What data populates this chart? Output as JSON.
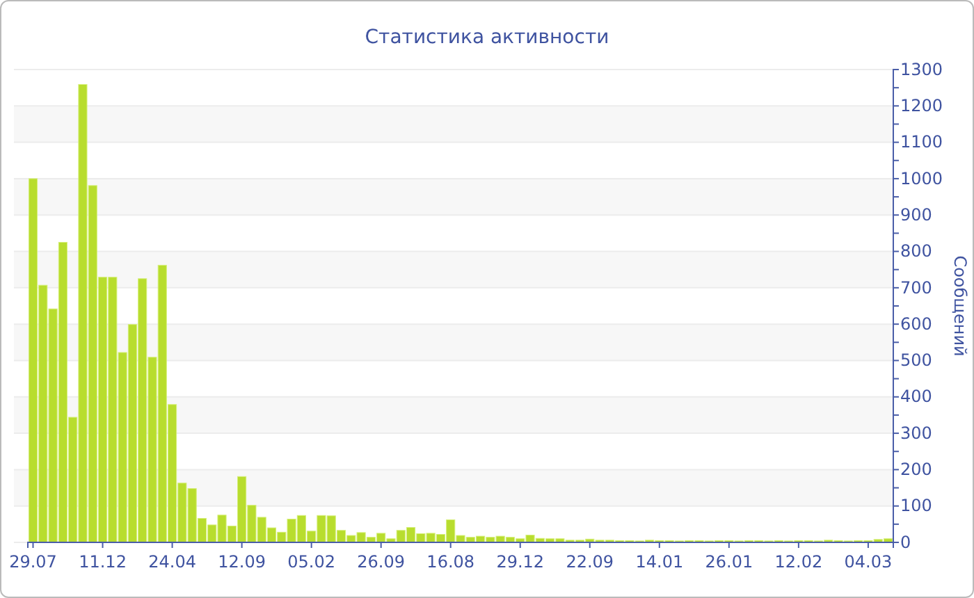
{
  "chart_data": {
    "type": "bar",
    "title": "Статистика активности",
    "ylabel": "Сообщений",
    "categories": [
      "29.07",
      null,
      null,
      null,
      null,
      null,
      null,
      "11.12",
      null,
      null,
      null,
      null,
      null,
      null,
      "24.04",
      null,
      null,
      null,
      null,
      null,
      null,
      "12.09",
      null,
      null,
      null,
      null,
      null,
      null,
      "05.02",
      null,
      null,
      null,
      null,
      null,
      null,
      "26.09",
      null,
      null,
      null,
      null,
      null,
      null,
      "16.08",
      null,
      null,
      null,
      null,
      null,
      null,
      "29.12",
      null,
      null,
      null,
      null,
      null,
      null,
      "22.09",
      null,
      null,
      null,
      null,
      null,
      null,
      "14.01",
      null,
      null,
      null,
      null,
      null,
      null,
      "26.01",
      null,
      null,
      null,
      null,
      null,
      null,
      "12.02",
      null,
      null,
      null,
      null,
      null,
      null,
      "04.03",
      null,
      null
    ],
    "values": [
      1000,
      707,
      642,
      825,
      344,
      1259,
      981,
      729,
      729,
      522,
      599,
      725,
      509,
      762,
      379,
      163,
      148,
      66,
      48,
      75,
      45,
      181,
      102,
      69,
      40,
      28,
      64,
      74,
      31,
      74,
      73,
      33,
      19,
      27,
      14,
      25,
      10,
      33,
      41,
      24,
      25,
      22,
      62,
      19,
      14,
      17,
      14,
      17,
      14,
      10,
      20,
      11,
      10,
      10,
      6,
      6,
      9,
      6,
      6,
      5,
      5,
      4,
      6,
      5,
      5,
      4,
      5,
      5,
      4,
      5,
      5,
      4,
      5,
      5,
      4,
      5,
      4,
      5,
      5,
      4,
      6,
      5,
      4,
      5,
      5,
      8,
      10
    ],
    "color": "#b8dd2e",
    "ylim": [
      0,
      1300
    ],
    "yticks": [
      0,
      {
        "value": 50,
        "label": null
      },
      100,
      {
        "value": 150,
        "label": null
      },
      200,
      {
        "value": 250,
        "label": null
      },
      300,
      {
        "value": 350,
        "label": null
      },
      400,
      {
        "value": 450,
        "label": null
      },
      500,
      {
        "value": 550,
        "label": null
      },
      600,
      {
        "value": 650,
        "label": null
      },
      700,
      {
        "value": 750,
        "label": null
      },
      800,
      {
        "value": 850,
        "label": null
      },
      900,
      {
        "value": 950,
        "label": null
      },
      1000,
      {
        "value": 1050,
        "label": null
      },
      1100,
      {
        "value": 1150,
        "label": null
      },
      1200,
      {
        "value": 1250,
        "label": null
      },
      1300
    ],
    "grid": "y"
  }
}
